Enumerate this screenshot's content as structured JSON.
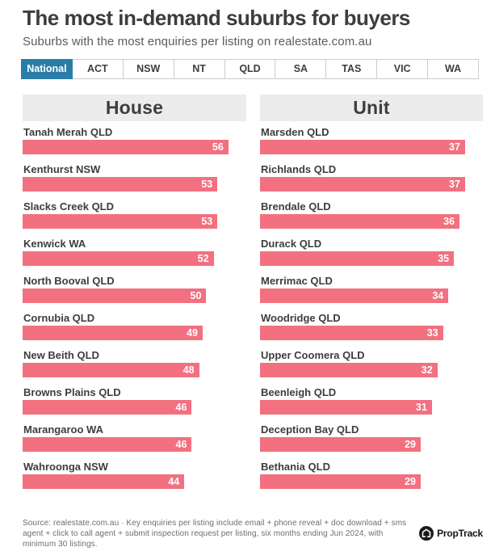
{
  "page": {
    "title": "The most in-demand suburbs for buyers",
    "subtitle": "Suburbs with the most enquiries per listing on realestate.com.au"
  },
  "tabs": {
    "items": [
      "National",
      "ACT",
      "NSW",
      "NT",
      "QLD",
      "SA",
      "TAS",
      "VIC",
      "WA"
    ],
    "active": "National"
  },
  "chart_data": [
    {
      "type": "bar",
      "orientation": "horizontal",
      "title": "House",
      "categories": [
        "Tanah Merah QLD",
        "Kenthurst NSW",
        "Slacks Creek QLD",
        "Kenwick WA",
        "North Booval QLD",
        "Cornubia QLD",
        "New Beith QLD",
        "Browns Plains QLD",
        "Marangaroo WA",
        "Wahroonga NSW"
      ],
      "values": [
        56,
        53,
        53,
        52,
        50,
        49,
        48,
        46,
        46,
        44
      ],
      "value_labels_shown": true,
      "bar_color": "#f2707f",
      "axis_shown": false
    },
    {
      "type": "bar",
      "orientation": "horizontal",
      "title": "Unit",
      "categories": [
        "Marsden QLD",
        "Richlands QLD",
        "Brendale QLD",
        "Durack QLD",
        "Merrimac QLD",
        "Woodridge QLD",
        "Upper Coomera QLD",
        "Beenleigh QLD",
        "Deception Bay QLD",
        "Bethania QLD"
      ],
      "values": [
        37,
        37,
        36,
        35,
        34,
        33,
        32,
        31,
        29,
        29
      ],
      "value_labels_shown": true,
      "bar_color": "#f2707f",
      "axis_shown": false
    }
  ],
  "footer": {
    "source": "Source: realestate.com.au · Key enquiries per listing include email + phone reveal + doc download + sms agent + click to call agent + submit inspection request per listing, six months ending Jun 2024, with minimum 30 listings.",
    "brand": "PropTrack"
  },
  "colors": {
    "accent_blue": "#2a7da9",
    "bar_pink": "#f2707f",
    "header_band": "#ececec",
    "text_dark": "#3d3d3d",
    "text_muted": "#6e6e6e"
  }
}
